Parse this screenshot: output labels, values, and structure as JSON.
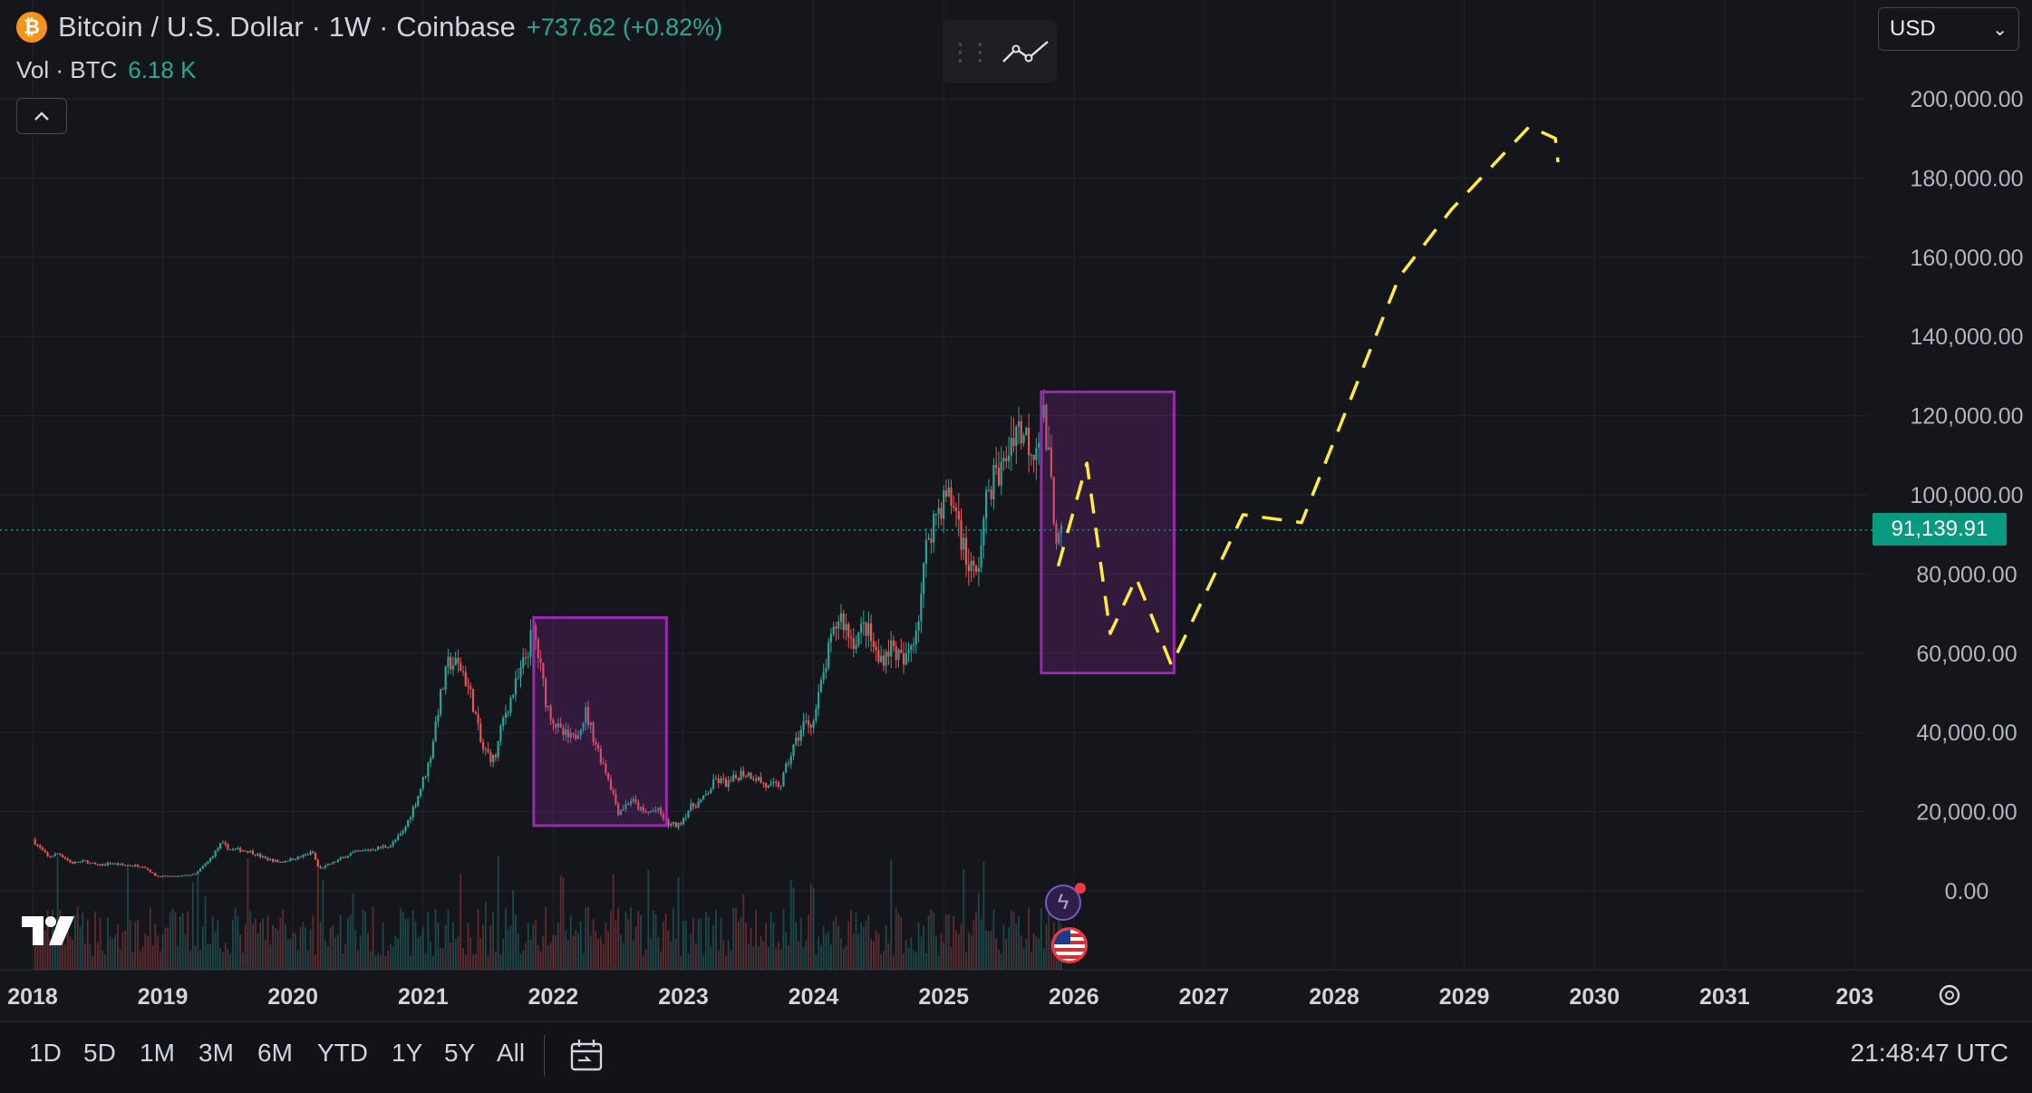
{
  "header": {
    "symbol_title": "Bitcoin / U.S. Dollar · 1W · Coinbase",
    "change": "+737.62 (+0.82%)",
    "volume_label": "Vol · BTC",
    "volume_value": "6.18 K",
    "collapse_glyph": "^",
    "btc_glyph": "₿"
  },
  "toolbar": {
    "drag_handle_icon": "grip-icon",
    "line_tool_icon": "trend-line-icon"
  },
  "currency": {
    "selected": "USD",
    "chevron": "⌄"
  },
  "price_axis": {
    "labels": [
      "200,000.00",
      "180,000.00",
      "160,000.00",
      "140,000.00",
      "120,000.00",
      "100,000.00",
      "80,000.00",
      "60,000.00",
      "40,000.00",
      "20,000.00",
      "0.00"
    ],
    "current_price_label": "91,139.91"
  },
  "time_axis": {
    "labels": [
      "2018",
      "2019",
      "2020",
      "2021",
      "2022",
      "2023",
      "2024",
      "2025",
      "2026",
      "2027",
      "2028",
      "2029",
      "2030",
      "2031",
      "203"
    ]
  },
  "bottom_bar": {
    "ranges": [
      "1D",
      "5D",
      "1M",
      "3M",
      "6M",
      "YTD",
      "1Y",
      "5Y",
      "All"
    ],
    "time": "21:48:47 UTC",
    "date_range_icon": "calendar-icon"
  },
  "colors": {
    "background": "#15161c",
    "up": "#26a69a",
    "down": "#ef5350",
    "box_stroke": "#9c27b0",
    "box_fill": "rgba(156,39,176,0.22)",
    "projection": "#ffeb3b",
    "price_line": "#089981"
  },
  "chart_data": {
    "type": "candlestick",
    "title": "Bitcoin / U.S. Dollar · 1W · Coinbase",
    "xlabel": "",
    "ylabel": "",
    "ylim": [
      0,
      200000
    ],
    "x_range": [
      2018.0,
      2032.0
    ],
    "grid": true,
    "current_price": 91139.91,
    "price_path": [
      [
        2018.0,
        13000
      ],
      [
        2018.05,
        11000
      ],
      [
        2018.12,
        8500
      ],
      [
        2018.2,
        9500
      ],
      [
        2018.3,
        7000
      ],
      [
        2018.4,
        7500
      ],
      [
        2018.5,
        6400
      ],
      [
        2018.6,
        7000
      ],
      [
        2018.7,
        6500
      ],
      [
        2018.85,
        6300
      ],
      [
        2018.95,
        3700
      ],
      [
        2019.1,
        3600
      ],
      [
        2019.25,
        4200
      ],
      [
        2019.35,
        7500
      ],
      [
        2019.45,
        12000
      ],
      [
        2019.52,
        10500
      ],
      [
        2019.65,
        10200
      ],
      [
        2019.8,
        8000
      ],
      [
        2019.9,
        7300
      ],
      [
        2020.05,
        8500
      ],
      [
        2020.15,
        9800
      ],
      [
        2020.2,
        5500
      ],
      [
        2020.3,
        7000
      ],
      [
        2020.45,
        9500
      ],
      [
        2020.6,
        10500
      ],
      [
        2020.75,
        11500
      ],
      [
        2020.85,
        15000
      ],
      [
        2020.95,
        23000
      ],
      [
        2021.05,
        33000
      ],
      [
        2021.12,
        47000
      ],
      [
        2021.2,
        58000
      ],
      [
        2021.3,
        56000
      ],
      [
        2021.38,
        48000
      ],
      [
        2021.45,
        36000
      ],
      [
        2021.55,
        33000
      ],
      [
        2021.62,
        44000
      ],
      [
        2021.75,
        55000
      ],
      [
        2021.85,
        66000
      ],
      [
        2021.95,
        47000
      ],
      [
        2022.05,
        40000
      ],
      [
        2022.15,
        38000
      ],
      [
        2022.25,
        45000
      ],
      [
        2022.35,
        35000
      ],
      [
        2022.42,
        29000
      ],
      [
        2022.5,
        20000
      ],
      [
        2022.6,
        23000
      ],
      [
        2022.7,
        19500
      ],
      [
        2022.8,
        20500
      ],
      [
        2022.88,
        16800
      ],
      [
        2022.96,
        16500
      ],
      [
        2023.05,
        21000
      ],
      [
        2023.15,
        23000
      ],
      [
        2023.25,
        28000
      ],
      [
        2023.35,
        27000
      ],
      [
        2023.45,
        30000
      ],
      [
        2023.55,
        29000
      ],
      [
        2023.65,
        26000
      ],
      [
        2023.75,
        27000
      ],
      [
        2023.82,
        34000
      ],
      [
        2023.92,
        42000
      ],
      [
        2024.0,
        43000
      ],
      [
        2024.12,
        61000
      ],
      [
        2024.2,
        70000
      ],
      [
        2024.3,
        63000
      ],
      [
        2024.4,
        67000
      ],
      [
        2024.5,
        58000
      ],
      [
        2024.6,
        62000
      ],
      [
        2024.7,
        57000
      ],
      [
        2024.8,
        68000
      ],
      [
        2024.88,
        90000
      ],
      [
        2024.95,
        96000
      ],
      [
        2025.02,
        100000
      ],
      [
        2025.1,
        96000
      ],
      [
        2025.17,
        84000
      ],
      [
        2025.25,
        79000
      ],
      [
        2025.35,
        103000
      ],
      [
        2025.45,
        106000
      ],
      [
        2025.55,
        118000
      ],
      [
        2025.62,
        115000
      ],
      [
        2025.7,
        112000
      ],
      [
        2025.76,
        122000
      ],
      [
        2025.8,
        110000
      ],
      [
        2025.85,
        95000
      ],
      [
        2025.88,
        87000
      ],
      [
        2025.92,
        91140
      ]
    ],
    "volume_scale_note": "volume histogram shown without axis",
    "annotations": [
      {
        "type": "box",
        "x0": 2021.85,
        "x1": 2022.87,
        "y0": 16500,
        "y1": 69000
      },
      {
        "type": "box",
        "x0": 2025.75,
        "x1": 2026.77,
        "y0": 55000,
        "y1": 126000
      }
    ],
    "projection": [
      [
        2025.88,
        82000
      ],
      [
        2026.1,
        108000
      ],
      [
        2026.28,
        65000
      ],
      [
        2026.48,
        79000
      ],
      [
        2026.75,
        57000
      ],
      [
        2027.3,
        95000
      ],
      [
        2027.75,
        93000
      ],
      [
        2028.5,
        155000
      ],
      [
        2028.9,
        172000
      ],
      [
        2029.5,
        193000
      ],
      [
        2029.7,
        190000
      ],
      [
        2029.72,
        184000
      ]
    ]
  }
}
